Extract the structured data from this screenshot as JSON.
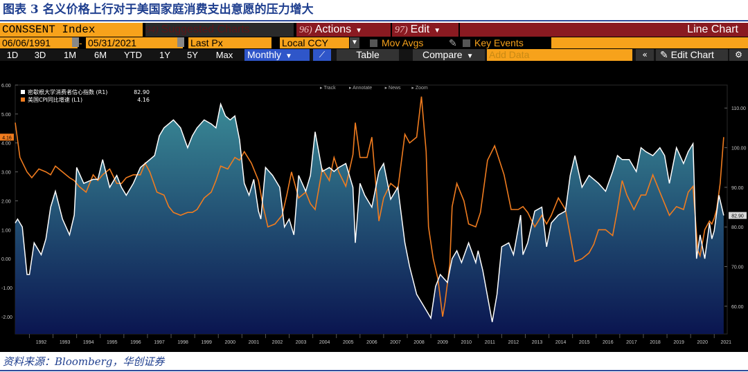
{
  "caption": "图表 3 名义价格上行对于美国家庭消费支出意愿的压力增大",
  "source": "资料来源：Bloomberg，华创证券",
  "toolbar": {
    "ticker": "CONSSENT Index",
    "suggested_key": "94)",
    "suggested_label": "Suggested Charts",
    "actions_key": "96)",
    "actions_label": "Actions",
    "edit_key": "97)",
    "edit_label": "Edit",
    "chart_type": "Line Chart",
    "date_start": "06/06/1991",
    "date_sep": "-",
    "date_end": "05/31/2021",
    "price_field": "Last Px",
    "currency": "Local CCY",
    "mov_avgs": "Mov Avgs",
    "key_events": "Key Events",
    "periods": [
      "1D",
      "3D",
      "1M",
      "6M",
      "YTD",
      "1Y",
      "5Y",
      "Max"
    ],
    "frequency": "Monthly",
    "table": "Table",
    "compare": "Compare",
    "add_data": "Add Data",
    "edit_chart": "Edit Chart",
    "sub_tools": [
      "Track",
      "Annotate",
      "News",
      "Zoom"
    ]
  },
  "colors": {
    "sentiment": "#ffffff",
    "cpi": "#f07c1f",
    "area_top": "#3a8a96",
    "area_bottom": "#0a1550",
    "bloomberg_orange": "#f7a21b",
    "bloomberg_red": "#8a1a21"
  },
  "chart_data": {
    "type": "line",
    "legend_position": "top-left",
    "x_labels": [
      "1992",
      "1993",
      "1994",
      "1995",
      "1996",
      "1997",
      "1998",
      "1999",
      "2000",
      "2001",
      "2002",
      "2003",
      "2004",
      "2005",
      "2006",
      "2007",
      "2008",
      "2009",
      "2010",
      "2011",
      "2012",
      "2013",
      "2014",
      "2015",
      "2016",
      "2017",
      "2018",
      "2019",
      "2020",
      "2021"
    ],
    "y_left": {
      "min": -2.6,
      "max": 6.0,
      "ticks": [
        "6.00",
        "5.00",
        "4.00",
        "3.00",
        "2.00",
        "1.00",
        "0.00",
        "-1.00",
        "-2.00"
      ],
      "tick_values": [
        6,
        5,
        4,
        3,
        2,
        1,
        0,
        -1,
        -2
      ]
    },
    "y_right": {
      "min": 53.0,
      "max": 115.8,
      "ticks": [
        "110.00",
        "100.00",
        "90.00",
        "80.00",
        "70.00",
        "60.00"
      ],
      "tick_values": [
        110,
        100,
        90,
        80,
        70,
        60
      ]
    },
    "series": [
      {
        "name": "密歇根大学消费者信心指数 (R1)",
        "last_value": "82.90",
        "axis": "right",
        "points": [
          [
            1991.4,
            81
          ],
          [
            1991.5,
            82
          ],
          [
            1991.7,
            80
          ],
          [
            1991.9,
            68
          ],
          [
            1992.0,
            68
          ],
          [
            1992.2,
            76
          ],
          [
            1992.5,
            73
          ],
          [
            1992.7,
            77
          ],
          [
            1992.9,
            85
          ],
          [
            1993.1,
            89
          ],
          [
            1993.4,
            82
          ],
          [
            1993.7,
            78
          ],
          [
            1993.9,
            83
          ],
          [
            1994.0,
            95
          ],
          [
            1994.3,
            91
          ],
          [
            1994.7,
            92
          ],
          [
            1994.9,
            92
          ],
          [
            1995.1,
            97
          ],
          [
            1995.4,
            90
          ],
          [
            1995.7,
            93
          ],
          [
            1995.9,
            90
          ],
          [
            1996.1,
            88
          ],
          [
            1996.4,
            91
          ],
          [
            1996.7,
            95
          ],
          [
            1996.9,
            96
          ],
          [
            1997.1,
            97
          ],
          [
            1997.3,
            98
          ],
          [
            1997.5,
            103
          ],
          [
            1997.7,
            105
          ],
          [
            1997.9,
            106
          ],
          [
            1998.1,
            107
          ],
          [
            1998.4,
            105
          ],
          [
            1998.7,
            100
          ],
          [
            1998.9,
            103
          ],
          [
            1999.1,
            105
          ],
          [
            1999.4,
            107
          ],
          [
            1999.7,
            106
          ],
          [
            1999.9,
            105
          ],
          [
            2000.1,
            111
          ],
          [
            2000.3,
            108
          ],
          [
            2000.5,
            107
          ],
          [
            2000.7,
            108
          ],
          [
            2000.9,
            102
          ],
          [
            2001.1,
            91
          ],
          [
            2001.3,
            88
          ],
          [
            2001.5,
            92
          ],
          [
            2001.7,
            84
          ],
          [
            2001.8,
            82
          ],
          [
            2002.0,
            95
          ],
          [
            2002.3,
            93
          ],
          [
            2002.6,
            90
          ],
          [
            2002.8,
            80
          ],
          [
            2003.0,
            82
          ],
          [
            2003.2,
            78
          ],
          [
            2003.4,
            93
          ],
          [
            2003.7,
            89
          ],
          [
            2003.9,
            93
          ],
          [
            2004.1,
            104
          ],
          [
            2004.4,
            94
          ],
          [
            2004.7,
            95
          ],
          [
            2004.9,
            94
          ],
          [
            2005.1,
            95
          ],
          [
            2005.4,
            96
          ],
          [
            2005.7,
            90
          ],
          [
            2005.8,
            76
          ],
          [
            2006.0,
            91
          ],
          [
            2006.2,
            88
          ],
          [
            2006.5,
            85
          ],
          [
            2006.8,
            94
          ],
          [
            2007.0,
            96
          ],
          [
            2007.3,
            87
          ],
          [
            2007.6,
            90
          ],
          [
            2007.9,
            76
          ],
          [
            2008.1,
            70
          ],
          [
            2008.4,
            63
          ],
          [
            2008.6,
            61
          ],
          [
            2008.9,
            58
          ],
          [
            2009.0,
            57
          ],
          [
            2009.2,
            65
          ],
          [
            2009.4,
            68
          ],
          [
            2009.7,
            66
          ],
          [
            2009.9,
            72
          ],
          [
            2010.1,
            74
          ],
          [
            2010.3,
            71
          ],
          [
            2010.6,
            76
          ],
          [
            2010.9,
            71
          ],
          [
            2011.0,
            74
          ],
          [
            2011.2,
            69
          ],
          [
            2011.6,
            56
          ],
          [
            2011.8,
            63
          ],
          [
            2011.9,
            69
          ],
          [
            2012.0,
            75
          ],
          [
            2012.3,
            76
          ],
          [
            2012.5,
            73
          ],
          [
            2012.8,
            83
          ],
          [
            2012.9,
            73
          ],
          [
            2013.1,
            76
          ],
          [
            2013.4,
            84
          ],
          [
            2013.7,
            85
          ],
          [
            2013.9,
            75
          ],
          [
            2014.1,
            81
          ],
          [
            2014.4,
            83
          ],
          [
            2014.7,
            84
          ],
          [
            2014.9,
            93
          ],
          [
            2015.1,
            98
          ],
          [
            2015.4,
            90
          ],
          [
            2015.7,
            93
          ],
          [
            2015.9,
            92
          ],
          [
            2016.1,
            91
          ],
          [
            2016.4,
            89
          ],
          [
            2016.7,
            94
          ],
          [
            2016.9,
            98
          ],
          [
            2017.1,
            97
          ],
          [
            2017.4,
            97
          ],
          [
            2017.7,
            94
          ],
          [
            2017.9,
            100
          ],
          [
            2018.1,
            99
          ],
          [
            2018.4,
            98
          ],
          [
            2018.7,
            100
          ],
          [
            2018.9,
            98
          ],
          [
            2019.1,
            91
          ],
          [
            2019.4,
            100
          ],
          [
            2019.7,
            96
          ],
          [
            2019.9,
            99
          ],
          [
            2020.1,
            101
          ],
          [
            2020.25,
            72
          ],
          [
            2020.4,
            78
          ],
          [
            2020.6,
            72
          ],
          [
            2020.8,
            81
          ],
          [
            2020.9,
            77
          ],
          [
            2021.0,
            79
          ],
          [
            2021.2,
            88
          ],
          [
            2021.4,
            82.9
          ]
        ]
      },
      {
        "name": "美国CPI同比增速 (L1)",
        "last_value": "4.16",
        "axis": "left",
        "points": [
          [
            1991.4,
            4.7
          ],
          [
            1991.6,
            3.5
          ],
          [
            1991.9,
            3.0
          ],
          [
            1992.1,
            2.8
          ],
          [
            1992.4,
            3.1
          ],
          [
            1992.7,
            3.0
          ],
          [
            1992.9,
            2.9
          ],
          [
            1993.1,
            3.2
          ],
          [
            1993.4,
            3.0
          ],
          [
            1993.7,
            2.8
          ],
          [
            1993.9,
            2.7
          ],
          [
            1994.1,
            2.5
          ],
          [
            1994.4,
            2.3
          ],
          [
            1994.7,
            2.9
          ],
          [
            1994.9,
            2.7
          ],
          [
            1995.1,
            2.9
          ],
          [
            1995.4,
            3.1
          ],
          [
            1995.7,
            2.6
          ],
          [
            1995.9,
            2.6
          ],
          [
            1996.1,
            2.8
          ],
          [
            1996.4,
            2.9
          ],
          [
            1996.7,
            2.9
          ],
          [
            1996.9,
            3.3
          ],
          [
            1997.1,
            3.0
          ],
          [
            1997.4,
            2.3
          ],
          [
            1997.7,
            2.2
          ],
          [
            1997.9,
            1.8
          ],
          [
            1998.1,
            1.6
          ],
          [
            1998.4,
            1.5
          ],
          [
            1998.7,
            1.6
          ],
          [
            1998.9,
            1.6
          ],
          [
            1999.1,
            1.7
          ],
          [
            1999.4,
            2.1
          ],
          [
            1999.7,
            2.3
          ],
          [
            1999.9,
            2.7
          ],
          [
            2000.1,
            3.2
          ],
          [
            2000.4,
            3.1
          ],
          [
            2000.7,
            3.5
          ],
          [
            2000.9,
            3.4
          ],
          [
            2001.1,
            3.7
          ],
          [
            2001.4,
            3.3
          ],
          [
            2001.7,
            2.7
          ],
          [
            2001.9,
            1.8
          ],
          [
            2002.1,
            1.1
          ],
          [
            2002.4,
            1.2
          ],
          [
            2002.7,
            1.5
          ],
          [
            2002.9,
            2.2
          ],
          [
            2003.1,
            3.0
          ],
          [
            2003.4,
            2.1
          ],
          [
            2003.7,
            2.3
          ],
          [
            2003.9,
            1.9
          ],
          [
            2004.1,
            1.7
          ],
          [
            2004.4,
            3.1
          ],
          [
            2004.7,
            2.7
          ],
          [
            2004.9,
            3.5
          ],
          [
            2005.1,
            3.0
          ],
          [
            2005.4,
            2.5
          ],
          [
            2005.7,
            3.6
          ],
          [
            2005.8,
            4.7
          ],
          [
            2006.0,
            3.5
          ],
          [
            2006.3,
            3.5
          ],
          [
            2006.5,
            4.2
          ],
          [
            2006.8,
            1.3
          ],
          [
            2007.0,
            2.1
          ],
          [
            2007.3,
            2.6
          ],
          [
            2007.6,
            2.4
          ],
          [
            2007.9,
            4.3
          ],
          [
            2008.1,
            4.0
          ],
          [
            2008.4,
            4.2
          ],
          [
            2008.6,
            5.6
          ],
          [
            2008.8,
            3.7
          ],
          [
            2008.9,
            1.1
          ],
          [
            2009.1,
            0.0
          ],
          [
            2009.3,
            -0.7
          ],
          [
            2009.5,
            -2.0
          ],
          [
            2009.6,
            -1.5
          ],
          [
            2009.8,
            -0.2
          ],
          [
            2009.9,
            1.8
          ],
          [
            2010.1,
            2.6
          ],
          [
            2010.4,
            2.0
          ],
          [
            2010.6,
            1.2
          ],
          [
            2010.9,
            1.1
          ],
          [
            2011.1,
            1.6
          ],
          [
            2011.4,
            3.4
          ],
          [
            2011.7,
            3.9
          ],
          [
            2011.9,
            3.4
          ],
          [
            2012.1,
            2.9
          ],
          [
            2012.4,
            1.7
          ],
          [
            2012.7,
            1.7
          ],
          [
            2012.9,
            1.8
          ],
          [
            2013.1,
            1.6
          ],
          [
            2013.4,
            1.1
          ],
          [
            2013.7,
            1.5
          ],
          [
            2013.9,
            1.2
          ],
          [
            2014.1,
            1.5
          ],
          [
            2014.4,
            2.1
          ],
          [
            2014.7,
            1.7
          ],
          [
            2014.9,
            0.8
          ],
          [
            2015.1,
            -0.1
          ],
          [
            2015.4,
            0.0
          ],
          [
            2015.7,
            0.2
          ],
          [
            2015.9,
            0.5
          ],
          [
            2016.1,
            1.0
          ],
          [
            2016.4,
            1.0
          ],
          [
            2016.7,
            0.8
          ],
          [
            2016.9,
            1.7
          ],
          [
            2017.1,
            2.7
          ],
          [
            2017.3,
            2.2
          ],
          [
            2017.6,
            1.7
          ],
          [
            2017.9,
            2.2
          ],
          [
            2018.1,
            2.2
          ],
          [
            2018.4,
            2.9
          ],
          [
            2018.7,
            2.3
          ],
          [
            2018.9,
            1.9
          ],
          [
            2019.1,
            1.5
          ],
          [
            2019.4,
            1.8
          ],
          [
            2019.7,
            1.7
          ],
          [
            2019.9,
            2.3
          ],
          [
            2020.1,
            2.5
          ],
          [
            2020.3,
            0.3
          ],
          [
            2020.4,
            0.1
          ],
          [
            2020.6,
            1.0
          ],
          [
            2020.8,
            1.3
          ],
          [
            2020.9,
            1.2
          ],
          [
            2021.0,
            1.4
          ],
          [
            2021.1,
            1.7
          ],
          [
            2021.25,
            2.6
          ],
          [
            2021.4,
            4.2
          ]
        ]
      }
    ]
  }
}
